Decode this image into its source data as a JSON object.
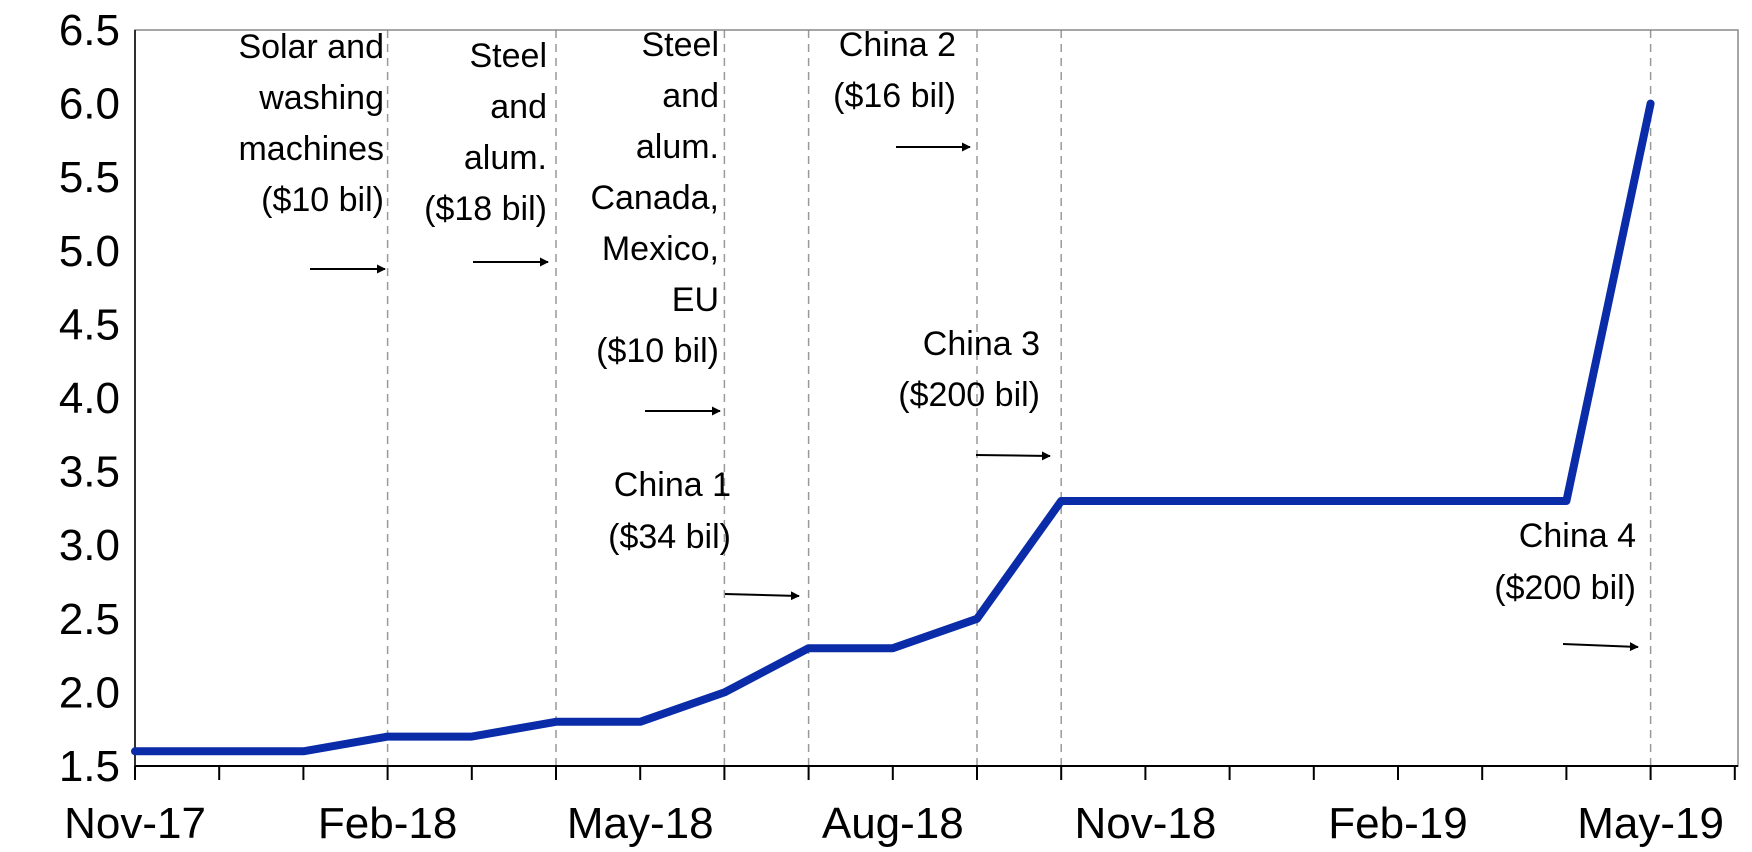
{
  "chart_data": {
    "type": "line",
    "title": "",
    "xlabel": "",
    "ylabel": "",
    "ylim": [
      1.5,
      6.5
    ],
    "yticks": [
      "1.5",
      "2.0",
      "2.5",
      "3.0",
      "3.5",
      "4.0",
      "4.5",
      "5.0",
      "5.5",
      "6.0",
      "6.5"
    ],
    "xlim": [
      "Nov-17",
      "Jun-19"
    ],
    "xticks": [
      "Nov-17",
      "Feb-18",
      "May-18",
      "Aug-18",
      "Nov-18",
      "Feb-19",
      "May-19"
    ],
    "grid": false,
    "legend": "none",
    "series": [
      {
        "color": "#0a2ca8",
        "x": [
          "Nov-17",
          "Dec-17",
          "Jan-18",
          "Feb-18",
          "Mar-18",
          "Apr-18",
          "May-18",
          "Jun-18",
          "Jul-18",
          "Aug-18",
          "Sep-18",
          "Oct-18",
          "Nov-18",
          "Dec-18",
          "Jan-19",
          "Feb-19",
          "Mar-19",
          "Apr-19",
          "May-19"
        ],
        "values": [
          1.6,
          1.6,
          1.6,
          1.7,
          1.7,
          1.8,
          1.8,
          2.0,
          2.3,
          2.3,
          2.5,
          3.3,
          3.3,
          3.3,
          3.3,
          3.3,
          3.3,
          3.3,
          6.0
        ]
      }
    ],
    "annotations": [
      {
        "lines": [
          "Solar and",
          "washing",
          "machines",
          "($10 bil)"
        ],
        "at": "Feb-18"
      },
      {
        "lines": [
          "Steel",
          "and",
          "alum.",
          "($18 bil)"
        ],
        "at": "Apr-18"
      },
      {
        "lines": [
          "Steel",
          "and",
          "alum.",
          "Canada,",
          "Mexico,",
          "EU",
          "($10 bil)"
        ],
        "at": "Jun-18"
      },
      {
        "lines": [
          "China 1",
          "($34 bil)"
        ],
        "at": "Jul-18"
      },
      {
        "lines": [
          "China 2",
          "($16 bil)"
        ],
        "at": "Sep-18"
      },
      {
        "lines": [
          "China 3",
          "($200 bil)"
        ],
        "at": "Oct-18"
      },
      {
        "lines": [
          "China 4",
          "($200 bil)"
        ],
        "at": "May-19"
      }
    ]
  }
}
